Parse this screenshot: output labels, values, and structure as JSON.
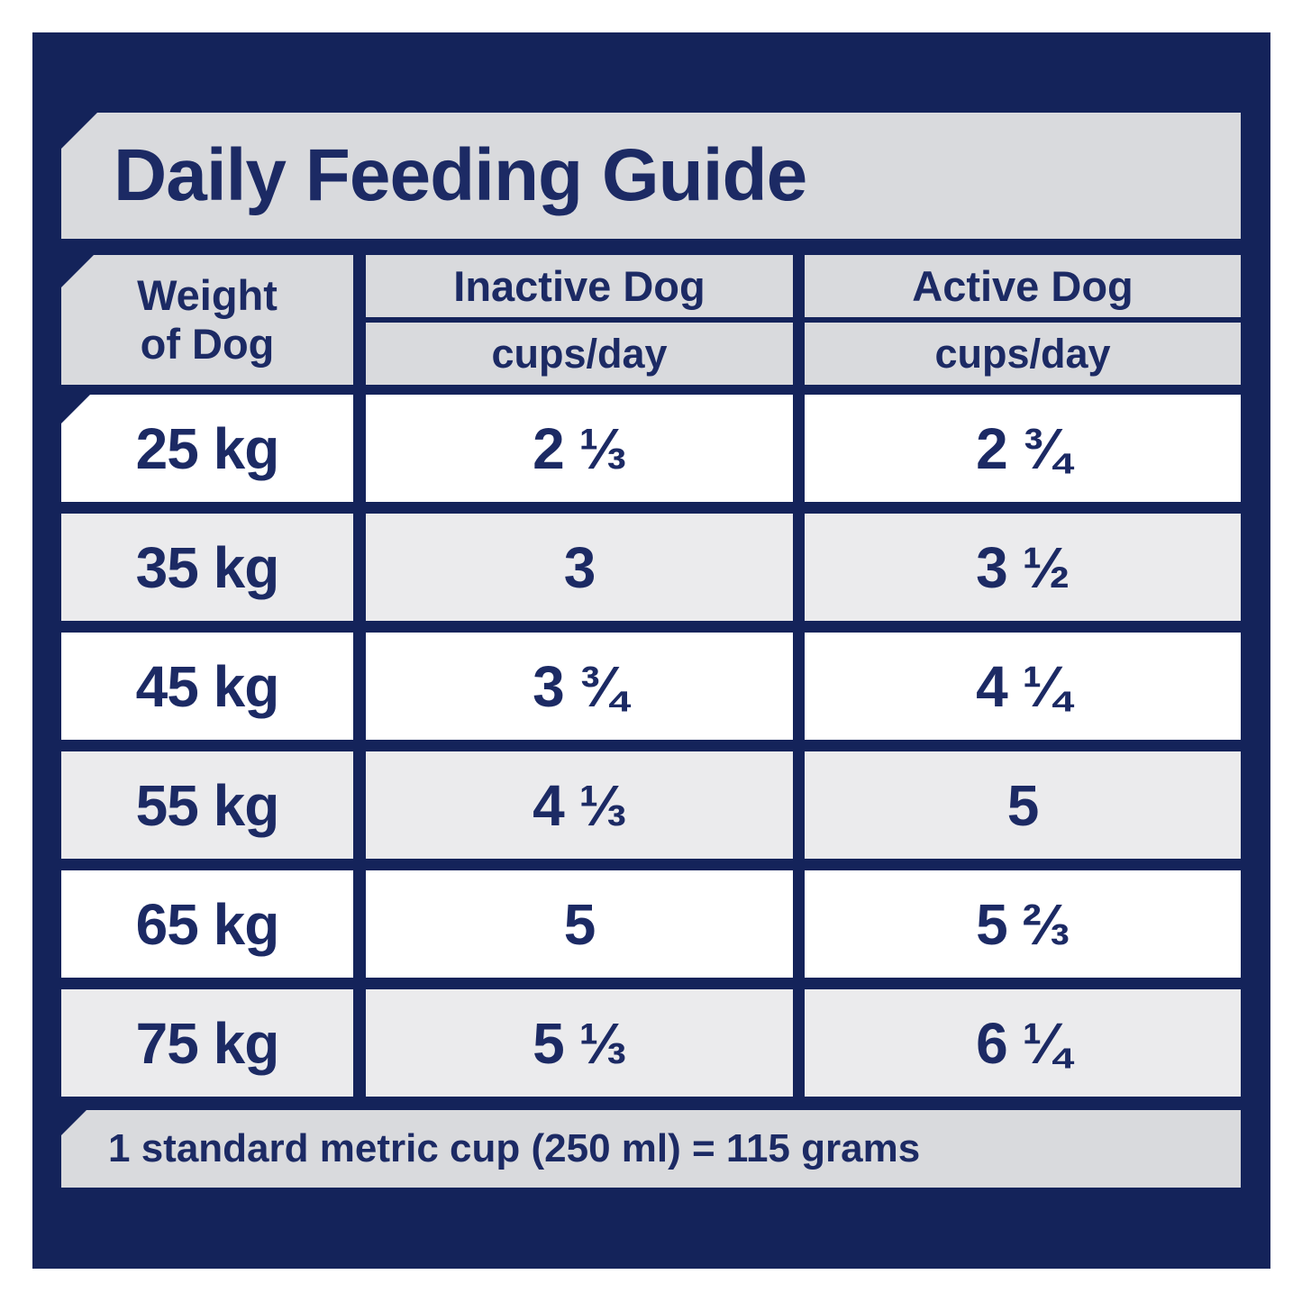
{
  "title": "Daily Feeding Guide",
  "table": {
    "weight_header_line1": "Weight",
    "weight_header_line2": "of Dog",
    "columns": [
      {
        "label": "Inactive Dog",
        "sublabel": "cups/day"
      },
      {
        "label": "Active Dog",
        "sublabel": "cups/day"
      }
    ],
    "rows": [
      {
        "weight": "25 kg",
        "inactive": "2 ⅓",
        "active": "2 ¾"
      },
      {
        "weight": "35 kg",
        "inactive": "3",
        "active": "3 ½"
      },
      {
        "weight": "45 kg",
        "inactive": "3 ¾",
        "active": "4 ¼"
      },
      {
        "weight": "55 kg",
        "inactive": "4 ⅓",
        "active": "5"
      },
      {
        "weight": "65 kg",
        "inactive": "5",
        "active": "5 ⅔"
      },
      {
        "weight": "75 kg",
        "inactive": "5 ⅓",
        "active": "6 ¼"
      }
    ]
  },
  "footnote": "1 standard metric cup (250 ml) = 115 grams",
  "colors": {
    "navy": "#14235a",
    "text_navy": "#1c2a64",
    "band_gray": "#d9dadd",
    "row_gray": "#ebebed",
    "white": "#ffffff"
  }
}
